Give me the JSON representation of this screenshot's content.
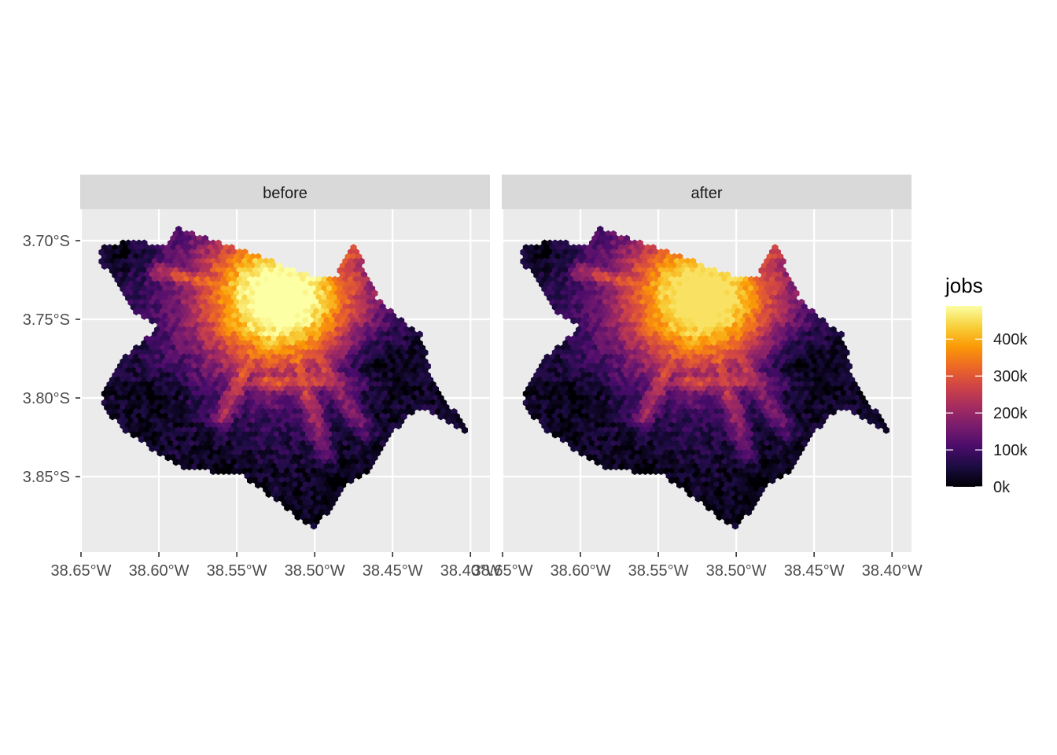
{
  "figure": {
    "facets": [
      {
        "label": "before",
        "intensity": 1.0
      },
      {
        "label": "after",
        "intensity": 0.93
      }
    ],
    "x_axis": {
      "ticks": [
        -38.65,
        -38.6,
        -38.55,
        -38.5,
        -38.45,
        -38.4
      ],
      "tick_labels": [
        "38.65°W",
        "38.60°W",
        "38.55°W",
        "38.50°W",
        "38.45°W",
        "38.40°W"
      ],
      "range": [
        -38.6505,
        -38.3875
      ]
    },
    "y_axis": {
      "ticks": [
        -3.7,
        -3.75,
        -3.8,
        -3.85
      ],
      "tick_labels": [
        "3.70°S",
        "3.75°S",
        "3.80°S",
        "3.85°S"
      ],
      "range": [
        -3.898,
        -3.68
      ]
    },
    "legend": {
      "title": "jobs",
      "breaks": [
        0,
        100000,
        200000,
        300000,
        400000
      ],
      "labels": [
        "0k",
        "100k",
        "200k",
        "300k",
        "400k"
      ],
      "max": 490000,
      "palette": [
        "#000004",
        "#1b0c41",
        "#4a0c6b",
        "#781c6d",
        "#a52c60",
        "#cf4446",
        "#ed6925",
        "#fb9b06",
        "#f7d13d",
        "#fcffa4"
      ]
    },
    "region_outline": [
      [
        -38.637,
        -3.703
      ],
      [
        -38.612,
        -3.7
      ],
      [
        -38.598,
        -3.705
      ],
      [
        -38.588,
        -3.692
      ],
      [
        -38.575,
        -3.697
      ],
      [
        -38.53,
        -3.712
      ],
      [
        -38.5,
        -3.724
      ],
      [
        -38.485,
        -3.722
      ],
      [
        -38.475,
        -3.7
      ],
      [
        -38.47,
        -3.712
      ],
      [
        -38.46,
        -3.737
      ],
      [
        -38.447,
        -3.748
      ],
      [
        -38.432,
        -3.76
      ],
      [
        -38.425,
        -3.788
      ],
      [
        -38.408,
        -3.812
      ],
      [
        -38.399,
        -3.823
      ],
      [
        -38.433,
        -3.806
      ],
      [
        -38.452,
        -3.823
      ],
      [
        -38.463,
        -3.845
      ],
      [
        -38.478,
        -3.854
      ],
      [
        -38.5,
        -3.884
      ],
      [
        -38.521,
        -3.868
      ],
      [
        -38.547,
        -3.849
      ],
      [
        -38.585,
        -3.844
      ],
      [
        -38.621,
        -3.822
      ],
      [
        -38.638,
        -3.803
      ],
      [
        -38.623,
        -3.775
      ],
      [
        -38.6,
        -3.755
      ],
      [
        -38.614,
        -3.747
      ],
      [
        -38.637,
        -3.713
      ]
    ]
  }
}
